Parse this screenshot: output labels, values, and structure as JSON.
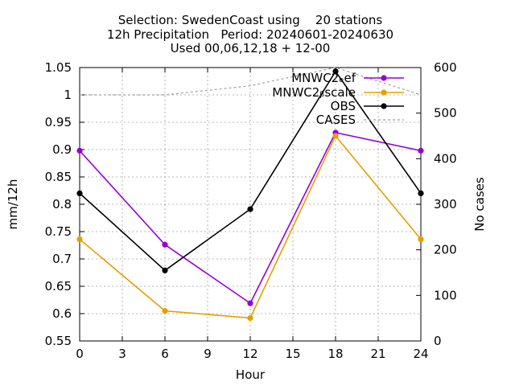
{
  "title_lines": [
    "Selection: SwedenCoast using    20 stations",
    "12h Precipitation   Period: 20240601-20240630",
    "Used 00,06,12,18 + 12-00"
  ],
  "chart_data": {
    "type": "line",
    "xlabel": "Hour",
    "ylabel": "mm/12h",
    "y2label": "No cases",
    "xlim": [
      0,
      24
    ],
    "ylim": [
      0.55,
      1.05
    ],
    "y2lim": [
      0,
      600
    ],
    "x_ticks": [
      "0",
      "3",
      "6",
      "9",
      "12",
      "15",
      "18",
      "21",
      "24"
    ],
    "y_ticks": [
      "0.55",
      "0.6",
      "0.65",
      "0.7",
      "0.75",
      "0.8",
      "0.85",
      "0.9",
      "0.95",
      "1",
      "1.05"
    ],
    "y2_ticks": [
      "0",
      "100",
      "200",
      "300",
      "400",
      "500",
      "600"
    ],
    "grid": true,
    "legend_position": "top-right",
    "x": [
      0,
      6,
      12,
      18,
      24
    ],
    "series": [
      {
        "name": "MNWC2_ef",
        "display_name": "MNWC2ₑef",
        "color": "#9400d3",
        "values": [
          0.898,
          0.726,
          0.619,
          0.931,
          0.898
        ],
        "axis": "y1",
        "marker": "filled-circle"
      },
      {
        "name": "MNWC2_Bscale",
        "display_name": "MNWC2ᵦscale",
        "color": "#e69f00",
        "values": [
          0.736,
          0.605,
          0.592,
          0.925,
          0.736
        ],
        "axis": "y1",
        "marker": "filled-circle"
      },
      {
        "name": "OBS",
        "display_name": "OBS",
        "color": "#000000",
        "values": [
          0.82,
          0.679,
          0.791,
          1.043,
          0.82
        ],
        "axis": "y1",
        "marker": "filled-circle"
      },
      {
        "name": "CASES",
        "display_name": "CASES",
        "color": "#a0a0a0",
        "values": [
          540,
          540,
          560,
          600,
          540
        ],
        "axis": "y2",
        "dashed": true
      }
    ]
  }
}
